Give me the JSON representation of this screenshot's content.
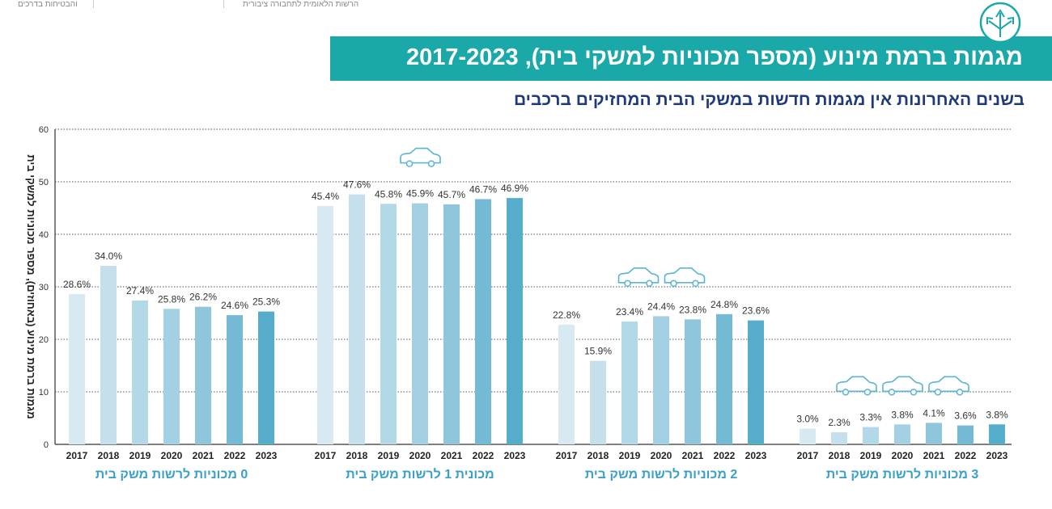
{
  "header": {
    "left_text": "והבטיחות בדרכים",
    "mid_text": "הרשות הלאומית לתחבורה ציבורית"
  },
  "title": "מגמות ברמת מינוע (מספר מכוניות למשקי בית), 2017-2023",
  "subtitle": "בשנים האחרונות אין מגמות חדשות במשקי הבית המחזיקים ברכבים",
  "colors": {
    "accent": "#1aa8a8",
    "subtitle": "#1f3a7a",
    "group_label": "#3aa0c8",
    "bars": [
      "#d7e9f1",
      "#c5e0ec",
      "#b3d8e7",
      "#a3d0e2",
      "#8fc6dc",
      "#74bad4",
      "#56accb"
    ]
  },
  "chart_data": {
    "type": "bar",
    "ylabel": "מגמות ברמת מינוע (באחוזים), מספר מכוניות למשקי בית",
    "ylim": [
      0,
      60
    ],
    "yticks": [
      0,
      10,
      20,
      30,
      40,
      50,
      60
    ],
    "grid": true,
    "categories": [
      "2017",
      "2018",
      "2019",
      "2020",
      "2021",
      "2022",
      "2023"
    ],
    "groups": [
      {
        "name": "0 מכוניות לרשות משק בית",
        "cars": 0,
        "values": [
          28.6,
          34.0,
          27.4,
          25.8,
          26.2,
          24.6,
          25.3
        ]
      },
      {
        "name": "מכונית 1 לרשות משק בית",
        "cars": 1,
        "values": [
          45.4,
          47.6,
          45.8,
          45.9,
          45.7,
          46.7,
          46.9
        ]
      },
      {
        "name": "2 מכוניות לרשות משק בית",
        "cars": 2,
        "values": [
          22.8,
          15.9,
          23.4,
          24.4,
          23.8,
          24.8,
          23.6
        ]
      },
      {
        "name": "3 מכוניות לרשות משק בית",
        "cars": 3,
        "values": [
          3.0,
          2.3,
          3.3,
          3.8,
          4.1,
          3.6,
          3.8
        ]
      }
    ]
  }
}
